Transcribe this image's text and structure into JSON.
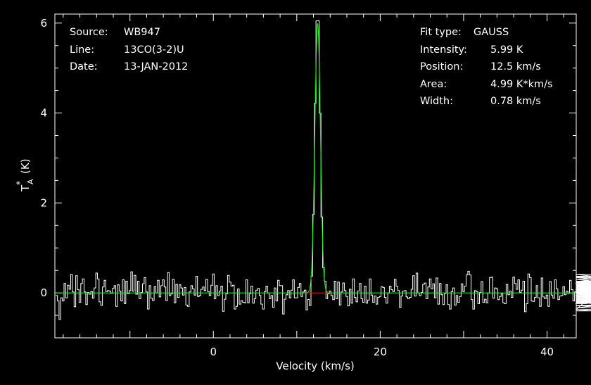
{
  "header": {
    "source_label": "Source:",
    "source_value": "WB947",
    "line_label": "Line:",
    "line_value": "13CO(3-2)U",
    "date_label": "Date:",
    "date_value": "13-JAN-2012"
  },
  "fit": {
    "type_label": "Fit type:",
    "type_value": "GAUSS",
    "intensity_label": "Intensity:",
    "intensity_value": "5.99 K",
    "position_label": "Position:",
    "position_value": "12.5 km/s",
    "area_label": "Area:",
    "area_value": "4.99 K*km/s",
    "width_label": "Width:",
    "width_value": "0.78 km/s"
  },
  "chart_data": {
    "type": "line",
    "title": "",
    "xlabel": "Velocity (km/s)",
    "ylabel_main": "T",
    "ylabel_sup": "*",
    "ylabel_sub": "A",
    "ylabel_unit": "(K)",
    "xlim": [
      -19,
      43.5
    ],
    "ylim": [
      -1.0,
      6.2
    ],
    "x_ticks": [
      {
        "value": 0,
        "label": "0"
      },
      {
        "value": 20,
        "label": "20"
      },
      {
        "value": 40,
        "label": "40"
      }
    ],
    "x_minor_step": 2,
    "y_ticks": [
      {
        "value": 0,
        "label": "0"
      },
      {
        "value": 2,
        "label": "2"
      },
      {
        "value": 4,
        "label": "4"
      },
      {
        "value": 6,
        "label": "6"
      }
    ],
    "y_minor_step": 0.5,
    "spectrum": {
      "name": "spectrum",
      "color": "#ffffff",
      "velocity_start": -18.8,
      "channel_width": 0.2,
      "noise_rms": 0.22,
      "intensity": [
        -0.06,
        -0.18,
        -0.59,
        -0.11,
        -0.18,
        0.21,
        -0.11,
        0.17,
        0.08,
        0.41,
        0.02,
        -0.31,
        0.38,
        0.07,
        -0.21,
        0.21,
        0.31,
        0.02,
        -0.26,
        0.01,
        -0.03,
        0.03,
        -0.12,
        0.11,
        0.44,
        0.31,
        -0.2,
        -0.28,
        0.13,
        0.28,
        0.03,
        0.05,
        0.04,
        -0.01,
        0.1,
        0.16,
        -0.3,
        0.18,
        0.04,
        -0.18,
        0.29,
        -0.24,
        0.26,
        -0.02,
        0.05,
        0.47,
        0.04,
        0.39,
        -0.03,
        0.26,
        -0.13,
        0.01,
        0.2,
        0.34,
        0.02,
        -0.36,
        0.16,
        -0.12,
        -0.17,
        0.14,
        0.0,
        0.28,
        -0.09,
        0.16,
        0.29,
        0.13,
        -0.17,
        0.45,
        -0.06,
        -0.02,
        0.3,
        -0.22,
        0.19,
        -0.1,
        0.18,
        0.11,
        -0.05,
        0.12,
        -0.27,
        -0.3,
        0.02,
        0.16,
        0.09,
        -0.05,
        0.37,
        -0.08,
        -0.06,
        0.08,
        0.13,
        0.05,
        0.3,
        0.03,
        -0.06,
        0.17,
        0.42,
        -0.13,
        0.16,
        -0.06,
        0.04,
        0.15,
        -0.41,
        -0.14,
        -0.02,
        0.39,
        0.24,
        0.15,
        0.17,
        -0.36,
        -0.3,
        0.09,
        -0.25,
        -0.17,
        -0.21,
        -0.22,
        0.29,
        -0.22,
        -0.02,
        0.15,
        -0.23,
        -0.13,
        0.06,
        0.1,
        -0.06,
        -0.25,
        -0.36,
        0.03,
        0.15,
        0.0,
        -0.13,
        -0.06,
        -0.32,
        0.11,
        -0.18,
        0.28,
        0.16,
        0.16,
        -0.47,
        -0.14,
        -0.04,
        0.05,
        -0.11,
        0.06,
        0.29,
        -0.11,
        -0.11,
        0.12,
        0.21,
        -0.08,
        0.02,
        0.06,
        -0.38,
        -0.17,
        -0.43,
        -0.27,
        -0.17,
        0.24,
        0.02,
        0.21,
        0.02,
        -0.23,
        -0.08,
        0.11,
        -0.15,
        -0.02,
        0.04,
        -0.06,
        -0.15,
        0.26,
        -0.13,
        0.24,
        -0.27,
        0.02,
        0.22,
        0.05,
        -0.08,
        -0.29,
        0.08,
        -0.23,
        0.31,
        -0.1,
        -0.2,
        0.04,
        0.21,
        -0.13,
        -0.21,
        0.15,
        -0.23,
        -0.16,
        0.31,
        -0.05,
        -0.21,
        -0.07,
        -0.25,
        -0.1,
        -0.08,
        0.14,
        0.12,
        -0.1,
        -0.23,
        -0.0,
        0.15,
        0.07,
        0.03,
        0.3,
        0.15,
        0.05,
        -0.32,
        -0.07,
        0.04,
        0.05,
        -0.09,
        -0.13,
        -0.1,
        0.08,
        0.38,
        -0.07,
        0.44,
        -0.0,
        -0.06,
        0.01,
        0.19,
        0.22,
        -0.13,
        0.13,
        0.31,
        0.09,
        0.2,
        -0.11,
        0.33,
        -0.25,
        0.21,
        -0.04,
        -0.26,
        -0.01,
        0.18,
        -0.26,
        -0.36,
        0.03,
        0.11,
        -0.27,
        -0.06,
        -0.21,
        -0.08,
        0.2,
        0.03,
        0.15,
        0.4,
        0.48,
        0.4,
        -0.15,
        -0.36,
        0.05,
        0.03,
        -0.24,
        0.01,
        0.25,
        -0.21,
        -0.14,
        -0.22,
        0.0,
        0.34,
        0.35,
        -0.12,
        0.11,
        0.09,
        -0.15,
        -0.08,
        -0.01,
        -0.22,
        -0.24,
        0.19,
        -0.04,
        0.04,
        -0.1,
        0.35,
        0.21,
        0.08,
        0.29,
        0.01,
        0.06,
        0.26,
        -0.42,
        -0.24,
        0.42,
        0.34,
        -0.18,
        -0.19,
        -0.1,
        0.16,
        -0.11,
        -0.3,
        0.33,
        -0.09,
        -0.13,
        -0.05,
        -0.3,
        0.25,
        -0.05,
        -0.12,
        0.29,
        0.09,
        -0.15,
        -0.07,
        -0.06,
        0.14,
        -0.04,
        0.04,
        -0.01,
        0.28,
        0.07,
        -0.18,
        0.02,
        0.05,
        0.04,
        0.08,
        0.08,
        0.07,
        -0.06,
        -0.24,
        -0.09,
        0.21,
        0.03,
        -0.09,
        0.26,
        -0.37,
        0.06,
        -0.0,
        -0.01,
        -0.22,
        -0.2,
        -0.14,
        0.07,
        0.14,
        0.24,
        0.06,
        0.03,
        0.21,
        -0.33,
        -0.23,
        -0.13,
        -0.2,
        -0.1,
        0.2,
        0.06,
        0.17,
        -0.19,
        0.2,
        0.1,
        0.12,
        -0.16,
        0.2,
        -0.1,
        0.04,
        0.09,
        0.18,
        0.09,
        0.03,
        0.0,
        0.18,
        0.03,
        -0.01,
        0.25,
        0.03,
        -0.03,
        -0.14,
        -0.29,
        -0.16,
        0.37,
        0.13,
        0.17,
        0.1,
        0.12,
        -0.28,
        -0.23,
        0.41,
        0.15,
        0.07,
        -0.15,
        0.06,
        -0.02,
        0.3,
        0.05,
        -0.17,
        -0.04,
        0.04,
        0.34,
        0.12,
        0.07,
        0.09,
        0.3,
        -0.08,
        0.23,
        -0.23,
        -0.06,
        -0.1,
        -0.11,
        0.11,
        -0.07,
        -0.14,
        -0.07,
        0.23,
        0.12,
        0.06,
        -0.21,
        0.09,
        -0.08,
        -0.33,
        0.02,
        0.07,
        0.23,
        -0.11,
        0.11,
        -0.16,
        0.15,
        0.03,
        0.03,
        0.01,
        0.2,
        0.35,
        -0.22,
        -0.4,
        -0.09
      ]
    },
    "gaussian_fit": {
      "name": "gaussian fit",
      "color": "#00ff00",
      "baseline_color": "#ff0000",
      "amplitude": 5.99,
      "center": 12.5,
      "fwhm": 0.78,
      "baseline_range": [
        11.2,
        13.9
      ],
      "peak_observed": 6.05
    }
  }
}
